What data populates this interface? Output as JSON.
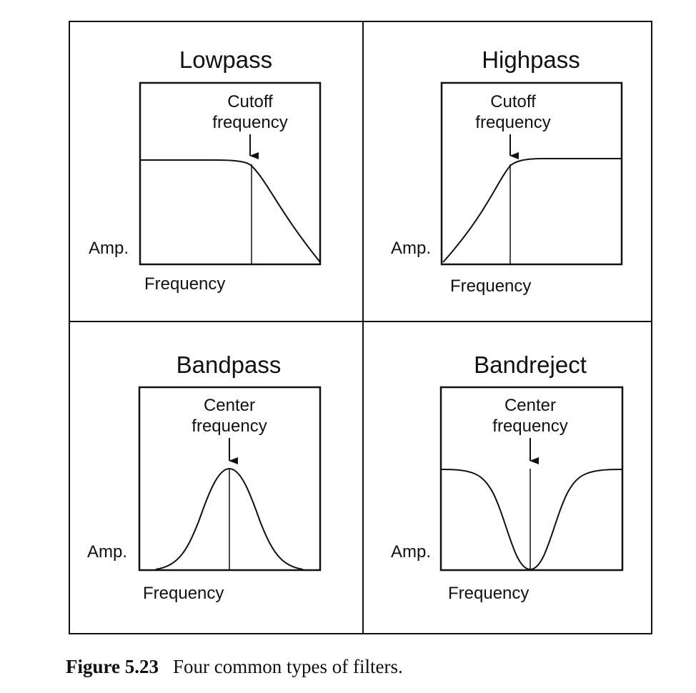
{
  "panels": [
    {
      "title": "Lowpass",
      "marker_label_line1": "Cutoff",
      "marker_label_line2": "frequency",
      "y_label": "Amp.",
      "x_label": "Frequency"
    },
    {
      "title": "Highpass",
      "marker_label_line1": "Cutoff",
      "marker_label_line2": "frequency",
      "y_label": "Amp.",
      "x_label": "Frequency"
    },
    {
      "title": "Bandpass",
      "marker_label_line1": "Center",
      "marker_label_line2": "frequency",
      "y_label": "Amp.",
      "x_label": "Frequency"
    },
    {
      "title": "Bandreject",
      "marker_label_line1": "Center",
      "marker_label_line2": "frequency",
      "y_label": "Amp.",
      "x_label": "Frequency"
    }
  ],
  "caption": {
    "number": "Figure 5.23",
    "text": "Four common types of filters."
  }
}
